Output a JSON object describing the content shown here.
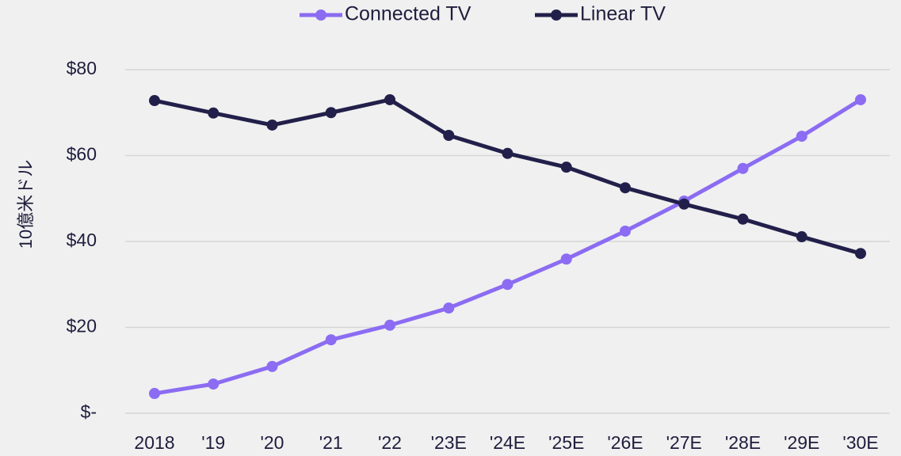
{
  "chart_data": {
    "type": "line",
    "ylabel": "10億米ドル",
    "categories": [
      "2018",
      "'19",
      "'20",
      "'21",
      "'22",
      "'23E",
      "'24E",
      "'25E",
      "'26E",
      "'27E",
      "'28E",
      "'29E",
      "'30E"
    ],
    "series": [
      {
        "name": "Connected TV",
        "color": "#8b6cf2",
        "values": [
          4.6,
          6.8,
          10.9,
          17.1,
          20.5,
          24.5,
          30.0,
          35.9,
          42.4,
          49.4,
          57.0,
          64.5,
          73.0
        ]
      },
      {
        "name": "Linear TV",
        "color": "#22204a",
        "values": [
          72.8,
          69.9,
          67.1,
          70.0,
          73.0,
          64.7,
          60.5,
          57.3,
          52.5,
          48.7,
          45.2,
          41.1,
          37.2
        ]
      }
    ],
    "ylim": [
      0,
      80
    ],
    "yticks": [
      {
        "value": 0,
        "label": "$-"
      },
      {
        "value": 20,
        "label": "$20"
      },
      {
        "value": 40,
        "label": "$40"
      },
      {
        "value": 60,
        "label": "$60"
      },
      {
        "value": 80,
        "label": "$80"
      }
    ],
    "grid": true,
    "legend": "top"
  }
}
